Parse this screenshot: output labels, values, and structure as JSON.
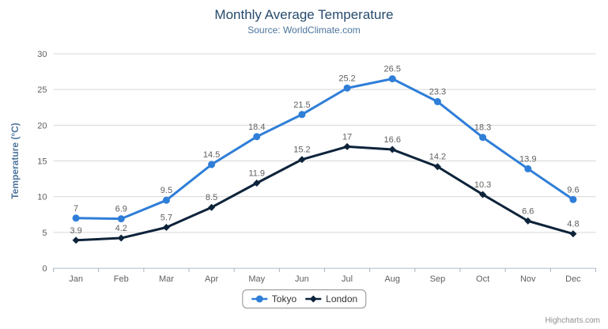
{
  "chart_data": {
    "type": "line",
    "title": "Monthly Average Temperature",
    "subtitle": "Source: WorldClimate.com",
    "categories": [
      "Jan",
      "Feb",
      "Mar",
      "Apr",
      "May",
      "Jun",
      "Jul",
      "Aug",
      "Sep",
      "Oct",
      "Nov",
      "Dec"
    ],
    "xlabel": "",
    "yaxis": {
      "title": "Temperature (°C)",
      "min": 0,
      "max": 30,
      "tick_interval": 5
    },
    "grid": true,
    "legend_position": "bottom",
    "data_labels": true,
    "series": [
      {
        "name": "Tokyo",
        "color": "#2f7ed8",
        "marker": "circle",
        "values": [
          7.0,
          6.9,
          9.5,
          14.5,
          18.4,
          21.5,
          25.2,
          26.5,
          23.3,
          18.3,
          13.9,
          9.6
        ]
      },
      {
        "name": "London",
        "color": "#0d233a",
        "marker": "diamond",
        "values": [
          3.9,
          4.2,
          5.7,
          8.5,
          11.9,
          15.2,
          17.0,
          16.6,
          14.2,
          10.3,
          6.6,
          4.8
        ]
      }
    ],
    "colors": {
      "title": "#274b6d",
      "subtitle": "#4d759e",
      "axis_title": "#4d759e",
      "axis_label": "#606060",
      "data_label": "#606060",
      "grid": "#d8d8d8",
      "axis_line": "#c0d0e0",
      "tick": "#aab4c2"
    }
  },
  "credit": {
    "label": "Highcharts.com"
  },
  "export_menu": {
    "icon": "hamburger-menu-icon"
  }
}
